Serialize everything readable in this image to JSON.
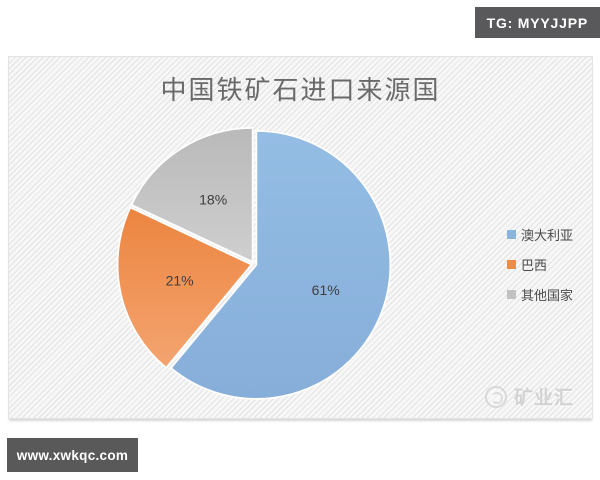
{
  "header_badge": {
    "text": "TG: MYYJJPP"
  },
  "footer_badge": {
    "text": "www.xwkqc.com"
  },
  "watermark": {
    "text": "矿业汇"
  },
  "chart_data": {
    "type": "pie",
    "title": "中国铁矿石进口来源国",
    "categories": [
      "澳大利亚",
      "巴西",
      "其他国家"
    ],
    "values": [
      61,
      21,
      18
    ],
    "unit": "%",
    "data_labels": [
      "61%",
      "21%",
      "18%"
    ],
    "colors": [
      "#8ab3dd",
      "#ed8c47",
      "#c2c2c2"
    ],
    "slice_gradients": [
      [
        "#94bde4",
        "#86aed9"
      ],
      [
        "#ec8540",
        "#f4a470"
      ],
      [
        "#b9b9b9",
        "#cfcfcf"
      ]
    ],
    "label_color": "#3e3e3e",
    "legend_position": "right",
    "start_angle_deg": 0,
    "direction": "clockwise"
  }
}
